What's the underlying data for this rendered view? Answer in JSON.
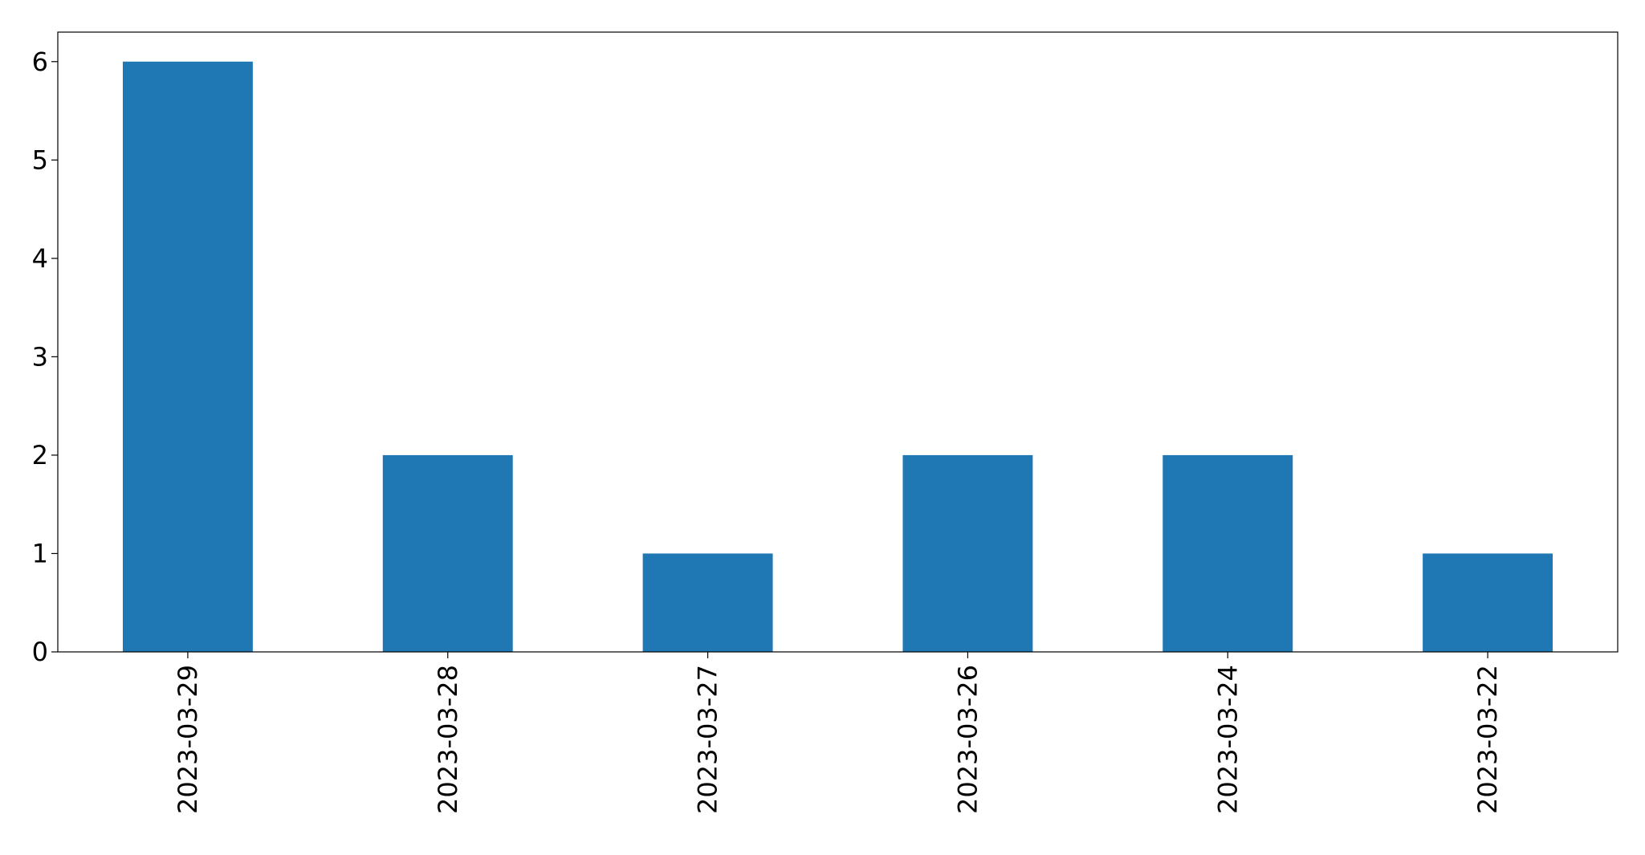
{
  "chart_data": {
    "type": "bar",
    "categories": [
      "2023-03-29",
      "2023-03-28",
      "2023-03-27",
      "2023-03-26",
      "2023-03-24",
      "2023-03-22"
    ],
    "values": [
      6,
      2,
      1,
      2,
      2,
      1
    ],
    "title": "",
    "xlabel": "",
    "ylabel": "",
    "ylim": [
      0,
      6.3
    ],
    "yticks": [
      0,
      1,
      2,
      3,
      4,
      5,
      6
    ],
    "grid": false,
    "bar_color": "#1f77b4"
  }
}
